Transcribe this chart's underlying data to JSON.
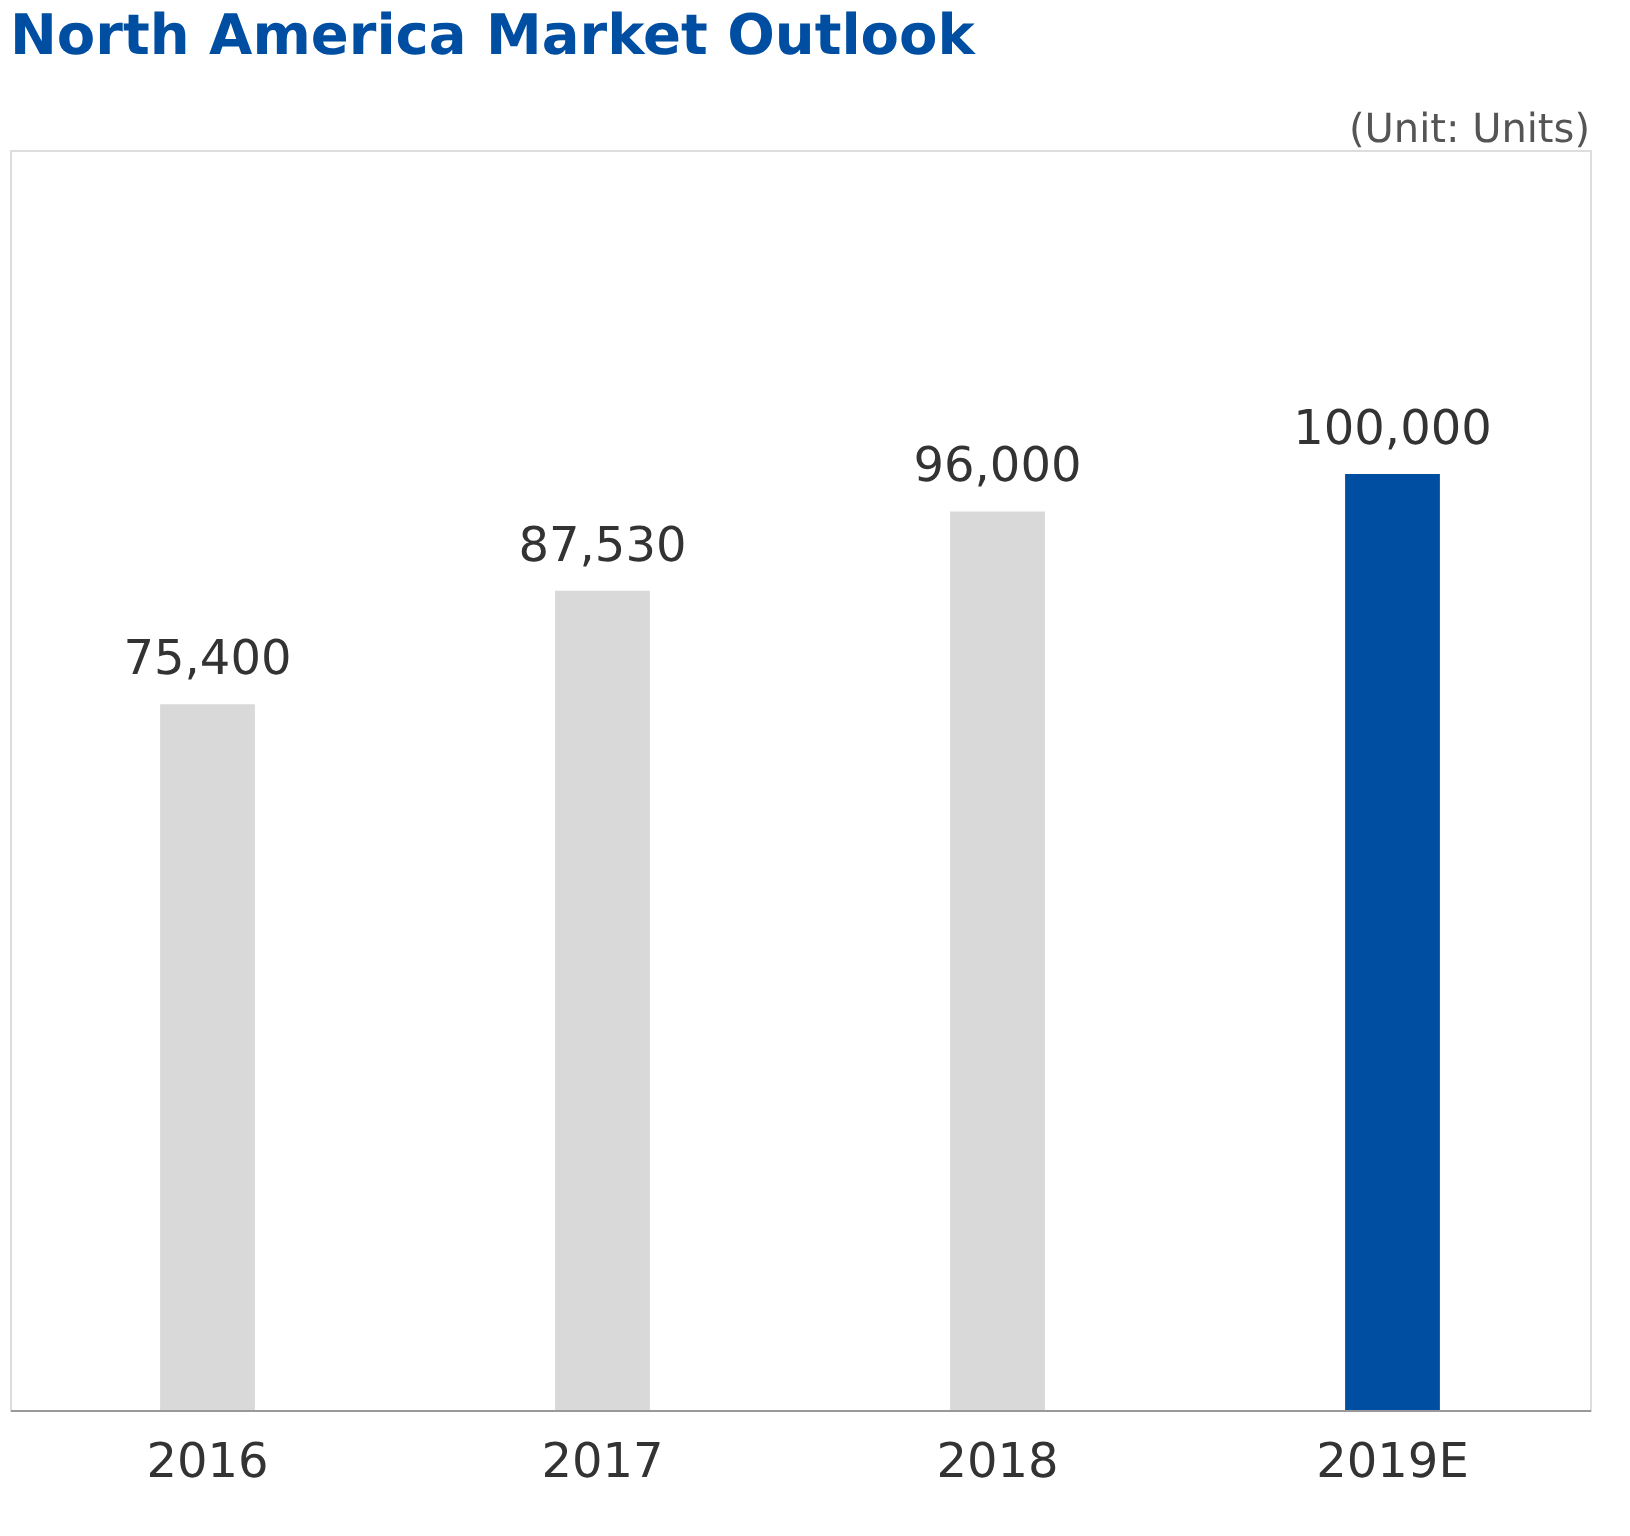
{
  "chart_data": {
    "type": "bar",
    "title": "North America Market Outlook",
    "annotations": [
      "(Unit: Units)"
    ],
    "categories": [
      "2016",
      "2017",
      "2018",
      "2019E"
    ],
    "values": [
      75400,
      87530,
      96000,
      100000
    ],
    "colors": [
      "#d9d9d9",
      "#d9d9d9",
      "#d9d9d9",
      "#004ea2"
    ],
    "value_labels": [
      "75,400",
      "87,530",
      "96,000",
      "100,000"
    ]
  }
}
